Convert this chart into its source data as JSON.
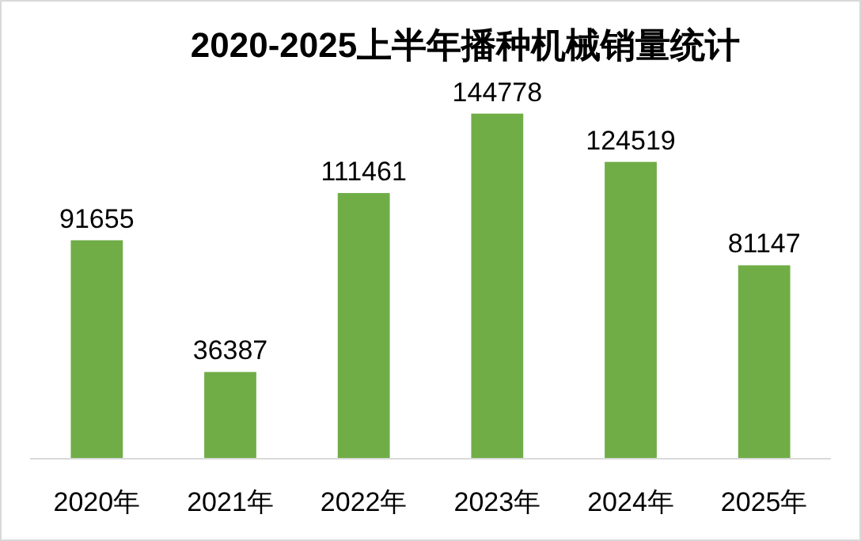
{
  "chart_data": {
    "type": "bar",
    "title": "2020-2025上半年播种机械销量统计",
    "categories": [
      "2020年",
      "2021年",
      "2022年",
      "2023年",
      "2024年",
      "2025年"
    ],
    "values": [
      91655,
      36387,
      111461,
      144778,
      124519,
      81147
    ],
    "color": "#70ad47",
    "data_labels": true
  }
}
